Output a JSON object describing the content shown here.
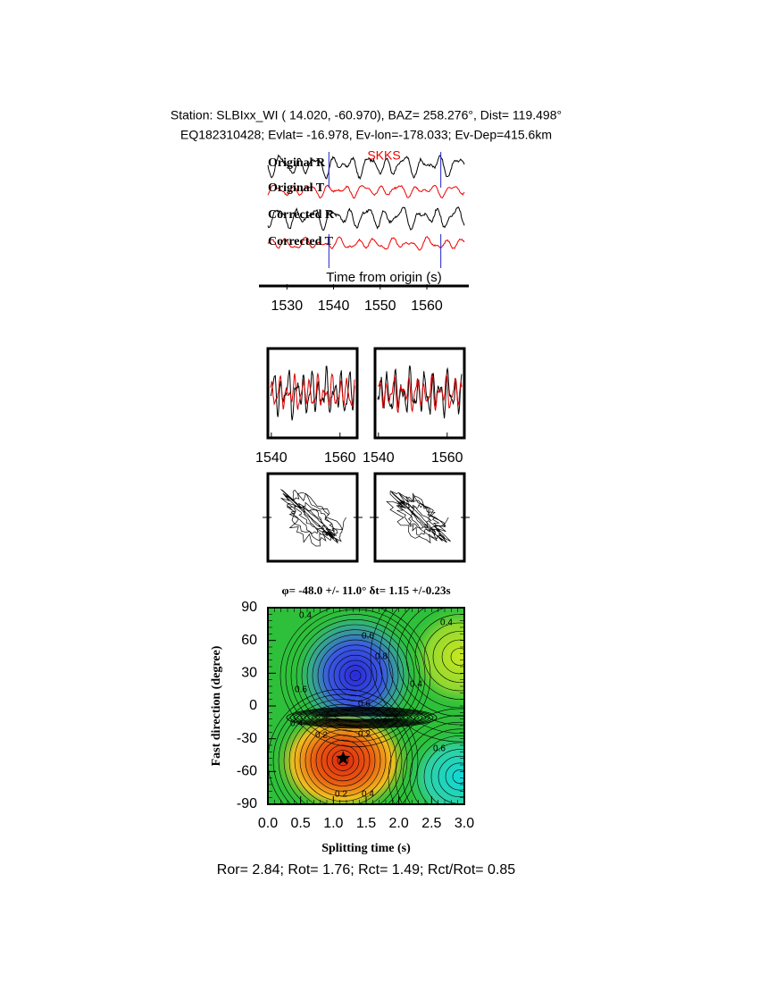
{
  "header": {
    "line1": "Station: SLBIxx_WI (  14.020,  -60.970), BAZ=  258.276°, Dist=  119.498°",
    "line2": "EQ182310428; Evlat= -16.978, Ev-lon=-178.033; Ev-Dep=415.6km"
  },
  "traces": {
    "labels": [
      "Original R",
      "Original T",
      "Corrected R",
      "Corrected T"
    ],
    "phase": "SKKS",
    "xlabel": "Time from origin (s)",
    "xlim": [
      1524,
      1569
    ],
    "xticks": [
      1530,
      1540,
      1550,
      1560
    ],
    "window": [
      1539,
      1563
    ]
  },
  "panels": {
    "xlim": [
      1539,
      1565
    ],
    "xticks": [
      1540,
      1560
    ]
  },
  "splitting": {
    "title": "φ= -48.0 +/- 11.0° δt= 1.15 +/-0.23s",
    "xlabel": "Splitting time (s)",
    "ylabel": "Fast direction (degree)",
    "xlim": [
      0,
      3
    ],
    "ylim": [
      -90,
      90
    ],
    "xticks": [
      {
        "value": 0,
        "label": "0.0"
      },
      0.5,
      {
        "value": 1,
        "label": "1.0"
      },
      1.5,
      {
        "value": 2,
        "label": "2.0"
      },
      2.5,
      {
        "value": 3,
        "label": "3.0"
      }
    ],
    "yticks": [
      90,
      60,
      30,
      0,
      -30,
      -60,
      -90
    ],
    "best": {
      "x": 1.15,
      "y": -48
    },
    "contour_labels": [
      "0.4",
      "0.6",
      "0.8",
      "0.6",
      "0.6",
      "0.4",
      "0.4",
      "0.4",
      "0.2",
      "0.2",
      "0.6",
      "0.2",
      "0.4",
      "0.4"
    ]
  },
  "footer": "Ror= 2.84; Rot= 1.76; Rct= 1.49; Rct/Rot= 0.85"
}
